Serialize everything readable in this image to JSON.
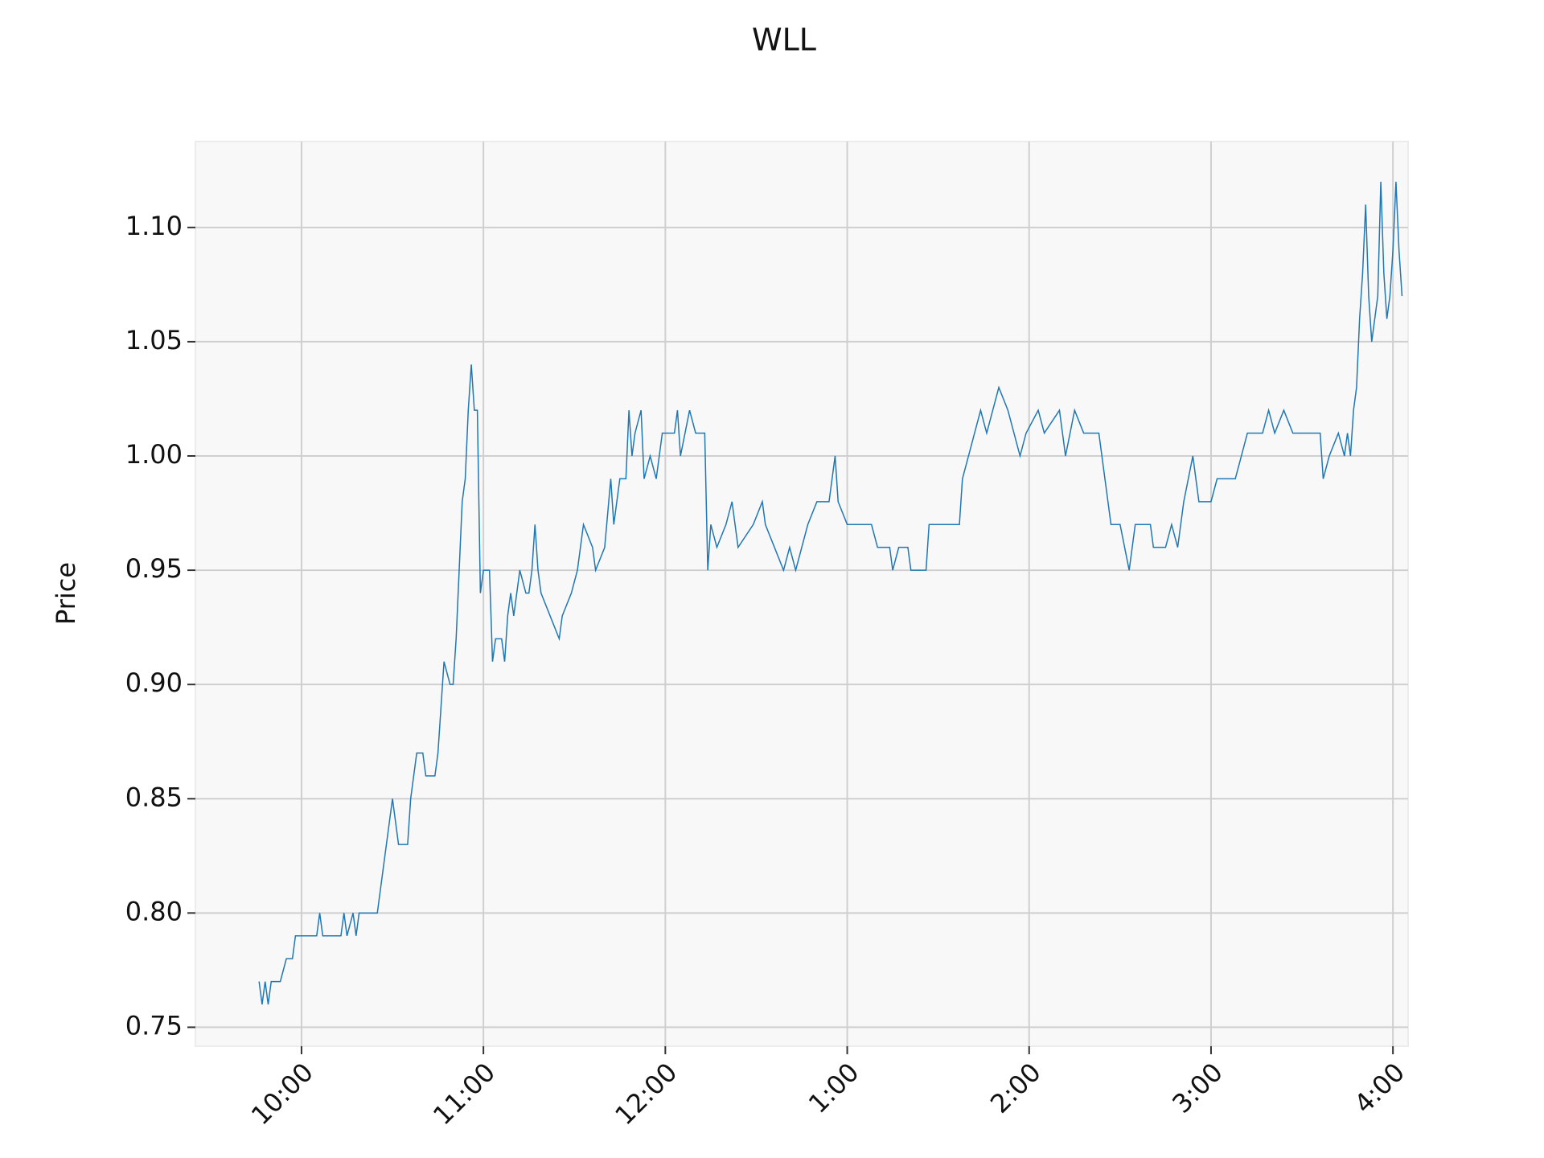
{
  "chart_data": {
    "type": "line",
    "title": "WLL",
    "y_label": "Price",
    "x": [
      "09:46",
      "09:47",
      "09:48",
      "09:49",
      "09:50",
      "09:53",
      "09:55",
      "09:57",
      "09:58",
      "10:05",
      "10:06",
      "10:07",
      "10:13",
      "10:14",
      "10:15",
      "10:17",
      "10:18",
      "10:19",
      "10:25",
      "10:26",
      "10:27",
      "10:28",
      "10:29",
      "10:30",
      "10:31",
      "10:32",
      "10:35",
      "10:36",
      "10:38",
      "10:40",
      "10:41",
      "10:44",
      "10:45",
      "10:46",
      "10:47",
      "10:49",
      "10:50",
      "10:51",
      "10:52",
      "10:53",
      "10:54",
      "10:55",
      "10:56",
      "10:57",
      "10:58",
      "10:59",
      "11:00",
      "11:02",
      "11:03",
      "11:04",
      "11:06",
      "11:07",
      "11:08",
      "11:09",
      "11:10",
      "11:12",
      "11:14",
      "11:15",
      "11:16",
      "11:17",
      "11:18",
      "11:19",
      "11:22",
      "11:25",
      "11:26",
      "11:29",
      "11:31",
      "11:33",
      "11:36",
      "11:37",
      "11:40",
      "11:42",
      "11:43",
      "11:45",
      "11:47",
      "11:48",
      "11:49",
      "11:50",
      "11:52",
      "11:53",
      "11:55",
      "11:57",
      "11:59",
      "12:03",
      "12:04",
      "12:05",
      "12:08",
      "12:10",
      "12:13",
      "12:14",
      "12:15",
      "12:17",
      "12:20",
      "12:22",
      "12:24",
      "12:29",
      "12:32",
      "12:33",
      "12:36",
      "12:39",
      "12:41",
      "12:43",
      "12:45",
      "12:47",
      "12:50",
      "12:54",
      "12:56",
      "12:57",
      "13:00",
      "13:08",
      "13:10",
      "13:14",
      "13:15",
      "13:17",
      "13:20",
      "13:21",
      "13:26",
      "13:27",
      "13:37",
      "13:38",
      "13:40",
      "13:42",
      "13:44",
      "13:46",
      "13:48",
      "13:50",
      "13:53",
      "13:55",
      "13:57",
      "13:59",
      "14:03",
      "14:05",
      "14:10",
      "14:12",
      "14:15",
      "14:18",
      "14:23",
      "14:25",
      "14:27",
      "14:30",
      "14:33",
      "14:35",
      "14:40",
      "14:41",
      "14:45",
      "14:47",
      "14:49",
      "14:51",
      "14:54",
      "14:56",
      "15:00",
      "15:02",
      "15:08",
      "15:10",
      "15:12",
      "15:17",
      "15:19",
      "15:21",
      "15:24",
      "15:27",
      "15:36",
      "15:37",
      "15:39",
      "15:42",
      "15:44",
      "15:45",
      "15:46",
      "15:47",
      "15:48",
      "15:49",
      "15:50",
      "15:51",
      "15:52",
      "15:53",
      "15:55",
      "15:56",
      "15:57",
      "15:58",
      "15:59",
      "16:00",
      "16:01",
      "16:02",
      "16:03"
    ],
    "series": [
      {
        "name": "WLL",
        "color": "#1f77b4",
        "values": [
          0.77,
          0.76,
          0.77,
          0.76,
          0.77,
          0.77,
          0.78,
          0.78,
          0.79,
          0.79,
          0.8,
          0.79,
          0.79,
          0.8,
          0.79,
          0.8,
          0.79,
          0.8,
          0.8,
          0.81,
          0.82,
          0.83,
          0.84,
          0.85,
          0.84,
          0.83,
          0.83,
          0.85,
          0.87,
          0.87,
          0.86,
          0.86,
          0.87,
          0.89,
          0.91,
          0.9,
          0.9,
          0.92,
          0.95,
          0.98,
          0.99,
          1.02,
          1.04,
          1.02,
          1.02,
          0.94,
          0.95,
          0.95,
          0.91,
          0.92,
          0.92,
          0.91,
          0.93,
          0.94,
          0.93,
          0.95,
          0.94,
          0.94,
          0.95,
          0.97,
          0.95,
          0.94,
          0.93,
          0.92,
          0.93,
          0.94,
          0.95,
          0.97,
          0.96,
          0.95,
          0.96,
          0.99,
          0.97,
          0.99,
          0.99,
          1.02,
          1.0,
          1.01,
          1.02,
          0.99,
          1.0,
          0.99,
          1.01,
          1.01,
          1.02,
          1.0,
          1.02,
          1.01,
          1.01,
          0.95,
          0.97,
          0.96,
          0.97,
          0.98,
          0.96,
          0.97,
          0.98,
          0.97,
          0.96,
          0.95,
          0.96,
          0.95,
          0.96,
          0.97,
          0.98,
          0.98,
          1.0,
          0.98,
          0.97,
          0.97,
          0.96,
          0.96,
          0.95,
          0.96,
          0.96,
          0.95,
          0.95,
          0.97,
          0.97,
          0.99,
          1.0,
          1.01,
          1.02,
          1.01,
          1.02,
          1.03,
          1.02,
          1.01,
          1.0,
          1.01,
          1.02,
          1.01,
          1.02,
          1.0,
          1.02,
          1.01,
          1.01,
          0.99,
          0.97,
          0.97,
          0.95,
          0.97,
          0.97,
          0.96,
          0.96,
          0.97,
          0.96,
          0.98,
          1.0,
          0.98,
          0.98,
          0.99,
          0.99,
          1.0,
          1.01,
          1.01,
          1.02,
          1.01,
          1.02,
          1.01,
          1.01,
          0.99,
          1.0,
          1.01,
          1.0,
          1.01,
          1.0,
          1.02,
          1.03,
          1.06,
          1.08,
          1.11,
          1.07,
          1.05,
          1.07,
          1.12,
          1.08,
          1.06,
          1.07,
          1.09,
          1.12,
          1.09,
          1.07
        ]
      }
    ],
    "xlim": [
      "09:25",
      "16:05"
    ],
    "xticks": [
      {
        "value": "10:00",
        "label": "10:00"
      },
      {
        "value": "11:00",
        "label": "11:00"
      },
      {
        "value": "12:00",
        "label": "12:00"
      },
      {
        "value": "13:00",
        "label": "1:00"
      },
      {
        "value": "14:00",
        "label": "2:00"
      },
      {
        "value": "15:00",
        "label": "3:00"
      },
      {
        "value": "16:00",
        "label": "4:00"
      }
    ],
    "ylim": [
      0.7417,
      1.1376
    ],
    "yticks": [
      0.75,
      {
        "value": 0.8,
        "label": "0.80"
      },
      0.85,
      {
        "value": 0.9,
        "label": "0.90"
      },
      0.95,
      {
        "value": 1.0,
        "label": "1.00"
      },
      1.05,
      {
        "value": 1.1,
        "label": "1.10"
      }
    ],
    "grid": true
  }
}
